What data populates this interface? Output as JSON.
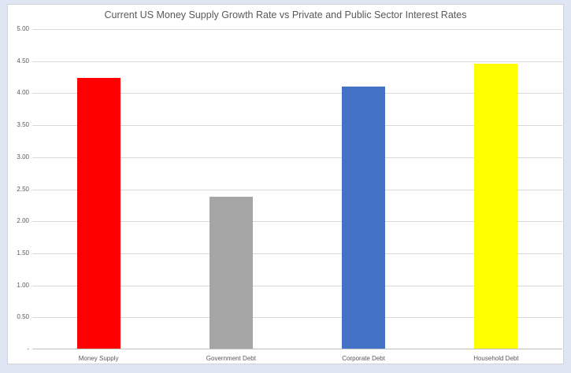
{
  "colors": {
    "page_background": "#dde6f2",
    "chart_background": "#ffffff",
    "chart_border": "#d2d2d2",
    "gridline": "#d9d9d9",
    "axis_line": "#bfbfbf",
    "text": "#595959"
  },
  "chart_data": {
    "type": "bar",
    "title": "Current US Money Supply Growth Rate vs Private and Public Sector Interest Rates",
    "categories": [
      "Money Supply",
      "Government Debt",
      "Corporate Debt",
      "Household Debt"
    ],
    "values": [
      4.23,
      2.37,
      4.09,
      4.45
    ],
    "bar_colors": [
      "#ff0000",
      "#a5a5a5",
      "#4472c4",
      "#ffff00"
    ],
    "xlabel": "",
    "ylabel": "",
    "ylim": [
      0,
      5
    ],
    "ytick_step": 0.5,
    "ytick_labels": [
      "5.00",
      "4.50",
      "4.00",
      "3.50",
      "3.00",
      "2.50",
      "2.00",
      "1.50",
      "1.00",
      "0.50",
      "-"
    ],
    "grid": true,
    "legend": false
  }
}
